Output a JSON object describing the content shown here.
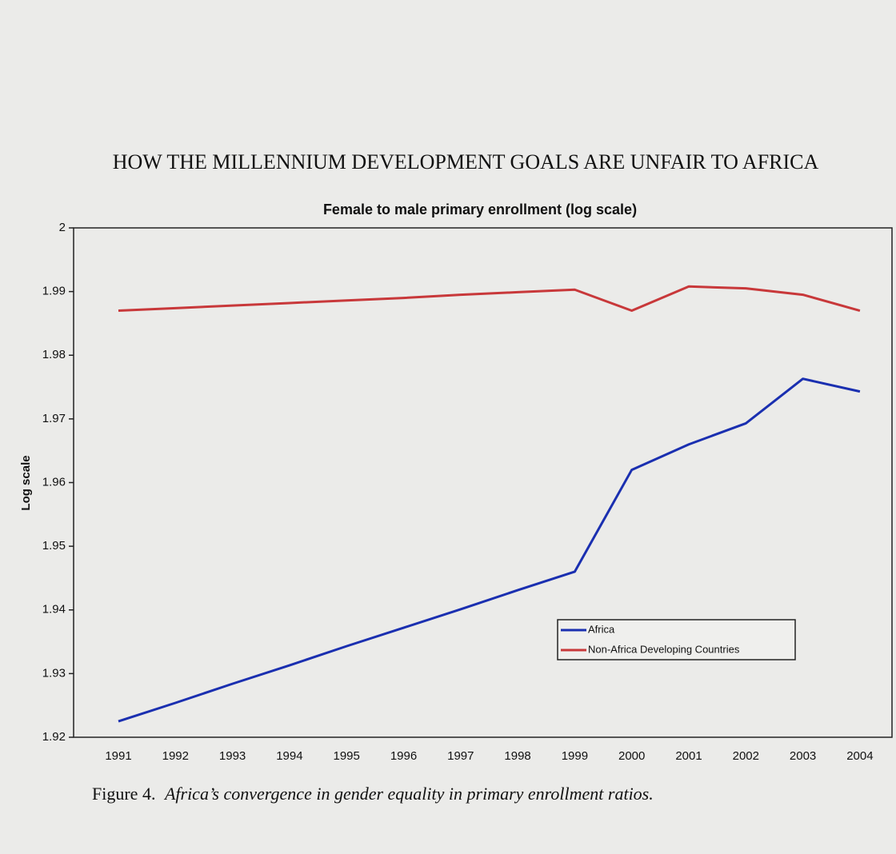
{
  "header": "HOW THE MILLENNIUM DEVELOPMENT GOALS ARE UNFAIR TO AFRICA",
  "chart_data": {
    "type": "line",
    "title": "Female to male primary enrollment (log scale)",
    "y_label": "Log scale",
    "categories": [
      "1991",
      "1992",
      "1993",
      "1994",
      "1995",
      "1996",
      "1997",
      "1998",
      "1999",
      "2000",
      "2001",
      "2002",
      "2003",
      "2004"
    ],
    "series": [
      {
        "name": "Africa",
        "color": "#1a2fb0",
        "values": [
          1.9225,
          1.9254,
          1.9284,
          1.9313,
          1.9343,
          1.9372,
          1.9401,
          1.9431,
          1.946,
          1.962,
          1.966,
          1.9693,
          1.9763,
          1.9743
        ]
      },
      {
        "name": "Non-Africa Developing Countries",
        "color": "#c8383a",
        "values": [
          1.987,
          1.9874,
          1.9878,
          1.9882,
          1.9886,
          1.989,
          1.9895,
          1.9899,
          1.9903,
          1.987,
          1.9908,
          1.9905,
          1.9895,
          1.987
        ]
      }
    ],
    "ylim": [
      1.92,
      2
    ],
    "yticks": [
      1.92,
      1.93,
      1.94,
      1.95,
      1.96,
      1.97,
      1.98,
      1.99,
      2
    ],
    "grid": false,
    "legend": "lower right"
  },
  "caption": {
    "label": "Figure 4.",
    "text": "Africa’s convergence in gender equality in primary enrollment ratios."
  }
}
